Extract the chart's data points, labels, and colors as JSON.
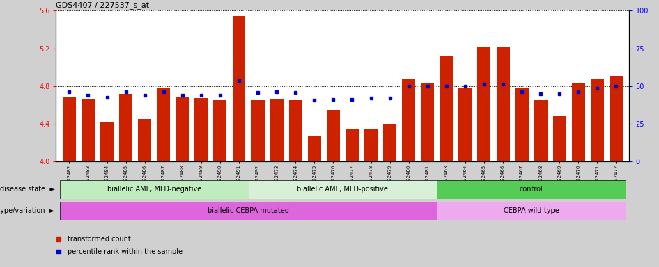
{
  "title": "GDS4407 / 227537_s_at",
  "samples": [
    "GSM822482",
    "GSM822483",
    "GSM822484",
    "GSM822485",
    "GSM822486",
    "GSM822487",
    "GSM822488",
    "GSM822489",
    "GSM822490",
    "GSM822491",
    "GSM822492",
    "GSM822473",
    "GSM822474",
    "GSM822475",
    "GSM822476",
    "GSM822477",
    "GSM822478",
    "GSM822479",
    "GSM822480",
    "GSM822481",
    "GSM822463",
    "GSM822464",
    "GSM822465",
    "GSM822466",
    "GSM822467",
    "GSM822468",
    "GSM822469",
    "GSM822470",
    "GSM822471",
    "GSM822472"
  ],
  "bar_values": [
    4.68,
    4.66,
    4.42,
    4.72,
    4.45,
    4.78,
    4.68,
    4.67,
    4.65,
    5.54,
    4.65,
    4.66,
    4.65,
    4.27,
    4.55,
    4.34,
    4.35,
    4.4,
    4.88,
    4.83,
    5.12,
    4.78,
    5.22,
    5.22,
    4.78,
    4.65,
    4.48,
    4.83,
    4.87,
    4.9
  ],
  "percentile_values": [
    4.74,
    4.7,
    4.68,
    4.74,
    4.7,
    4.74,
    4.7,
    4.7,
    4.7,
    4.86,
    4.73,
    4.74,
    4.73,
    4.65,
    4.66,
    4.66,
    4.67,
    4.67,
    4.8,
    4.8,
    4.8,
    4.8,
    4.82,
    4.82,
    4.74,
    4.72,
    4.72,
    4.74,
    4.78,
    4.8
  ],
  "ylim": [
    4.0,
    5.6
  ],
  "yticks_left": [
    4.0,
    4.4,
    4.8,
    5.2,
    5.6
  ],
  "yticks_right": [
    0,
    25,
    50,
    75,
    100
  ],
  "bar_color": "#cc2200",
  "marker_color": "#0000cc",
  "bg_color": "#d0d0d0",
  "plot_bg": "#ffffff",
  "groups": [
    {
      "label": "biallelic AML, MLD-negative",
      "start": 0,
      "end": 10,
      "color": "#c0ecc0"
    },
    {
      "label": "biallelic AML, MLD-positive",
      "start": 10,
      "end": 20,
      "color": "#d8f0d8"
    },
    {
      "label": "control",
      "start": 20,
      "end": 30,
      "color": "#55cc55"
    }
  ],
  "genotype_groups": [
    {
      "label": "biallelic CEBPA mutated",
      "start": 0,
      "end": 20,
      "color": "#dd66dd"
    },
    {
      "label": "CEBPA wild-type",
      "start": 20,
      "end": 30,
      "color": "#eeaaee"
    }
  ],
  "legend_items": [
    {
      "label": "transformed count",
      "color": "#cc2200"
    },
    {
      "label": "percentile rank within the sample",
      "color": "#0000cc"
    }
  ]
}
